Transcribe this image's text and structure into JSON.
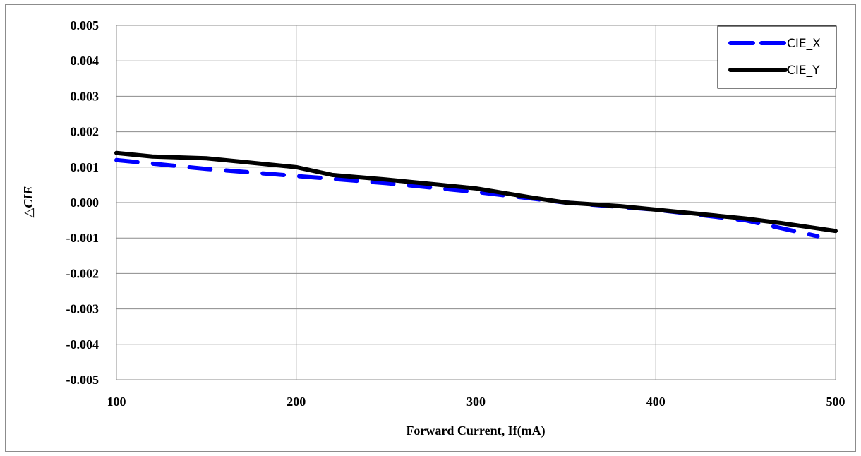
{
  "chart_data": {
    "type": "line",
    "title": "",
    "xlabel": "Forward Current, If(mA)",
    "ylabel": "△CIE",
    "xlim": [
      100,
      500
    ],
    "ylim": [
      -0.005,
      0.005
    ],
    "x_ticks": [
      {
        "value": 100,
        "label": "100"
      },
      {
        "value": 200,
        "label": "200"
      },
      {
        "value": 300,
        "label": "300"
      },
      {
        "value": 400,
        "label": "400"
      },
      {
        "value": 500,
        "label": "500"
      }
    ],
    "y_ticks": [
      {
        "value": 0.005,
        "label": "0.005"
      },
      {
        "value": 0.004,
        "label": "0.004"
      },
      {
        "value": 0.003,
        "label": "0.003"
      },
      {
        "value": 0.002,
        "label": "0.002"
      },
      {
        "value": 0.001,
        "label": "0.001"
      },
      {
        "value": 0.0,
        "label": "0.000"
      },
      {
        "value": -0.001,
        "label": "-0.001"
      },
      {
        "value": -0.002,
        "label": "-0.002"
      },
      {
        "value": -0.003,
        "label": "-0.003"
      },
      {
        "value": -0.004,
        "label": "-0.004"
      },
      {
        "value": -0.005,
        "label": "-0.005"
      }
    ],
    "grid": true,
    "legend_position": "top-right",
    "series": [
      {
        "name": "CIE_X",
        "color": "#0000ff",
        "style": "dashed",
        "x": [
          100,
          150,
          200,
          250,
          300,
          350,
          400,
          450,
          490
        ],
        "y": [
          0.0012,
          0.00095,
          0.00075,
          0.00055,
          0.0003,
          0.0,
          -0.0002,
          -0.0005,
          -0.00095
        ]
      },
      {
        "name": "CIE_Y",
        "color": "#000000",
        "style": "solid",
        "x": [
          100,
          120,
          150,
          170,
          200,
          220,
          250,
          280,
          300,
          330,
          350,
          380,
          400,
          450,
          470,
          500
        ],
        "y": [
          0.0014,
          0.0013,
          0.00125,
          0.00115,
          0.001,
          0.00078,
          0.00065,
          0.0005,
          0.0004,
          0.00015,
          0.0,
          -0.0001,
          -0.0002,
          -0.00045,
          -0.00058,
          -0.0008
        ]
      }
    ]
  }
}
